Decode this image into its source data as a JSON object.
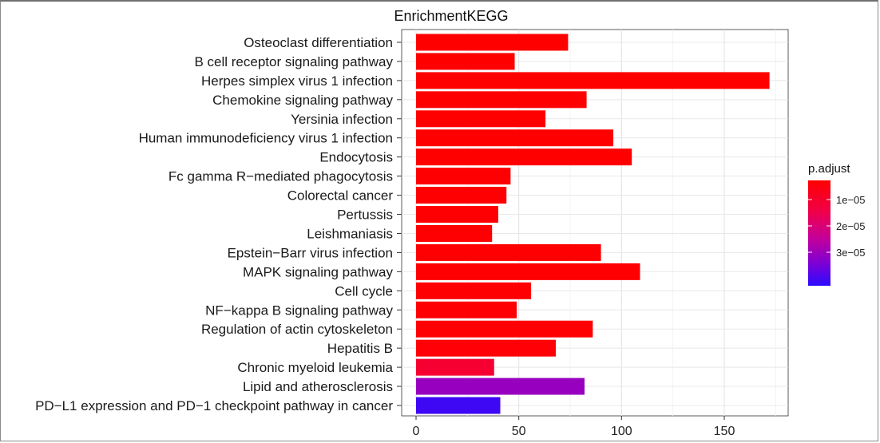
{
  "chart_data": {
    "type": "bar",
    "orientation": "horizontal",
    "title": "EnrichmentKEGG",
    "xlabel": "",
    "ylabel": "",
    "xlim": [
      0,
      180
    ],
    "x_ticks": [
      0,
      50,
      100,
      150
    ],
    "grid": true,
    "legend_position": "right",
    "categories": [
      "Osteoclast differentiation",
      "B cell receptor signaling pathway",
      "Herpes simplex virus 1 infection",
      "Chemokine signaling pathway",
      "Yersinia infection",
      "Human immunodeficiency virus 1 infection",
      "Endocytosis",
      "Fc gamma R−mediated phagocytosis",
      "Colorectal cancer",
      "Pertussis",
      "Leishmaniasis",
      "Epstein−Barr virus infection",
      "MAPK signaling pathway",
      "Cell cycle",
      "NF−kappa B signaling pathway",
      "Regulation of actin cytoskeleton",
      "Hepatitis B",
      "Chronic myeloid leukemia",
      "Lipid and atherosclerosis",
      "PD−L1 expression and PD−1 checkpoint pathway in cancer"
    ],
    "values": [
      74,
      48,
      172,
      83,
      63,
      96,
      105,
      46,
      44,
      40,
      37,
      90,
      109,
      56,
      49,
      86,
      68,
      38,
      82,
      41
    ],
    "p_adjust": [
      2e-07,
      2e-07,
      2e-07,
      2e-07,
      2e-07,
      2e-07,
      2e-07,
      3e-07,
      3e-07,
      3e-07,
      3e-07,
      3e-07,
      4e-07,
      4e-07,
      5e-07,
      6e-07,
      9e-07,
      8e-06,
      2.8e-05,
      3.8e-05
    ],
    "color_legend": {
      "title": "p.adjust",
      "ticks": [
        "1e−05",
        "2e−05",
        "3e−05"
      ],
      "tick_values": [
        1e-05,
        2e-05,
        3e-05
      ],
      "range": [
        0,
        4e-05
      ],
      "low_color": "#ff0000",
      "high_color": "#0000ff"
    }
  }
}
